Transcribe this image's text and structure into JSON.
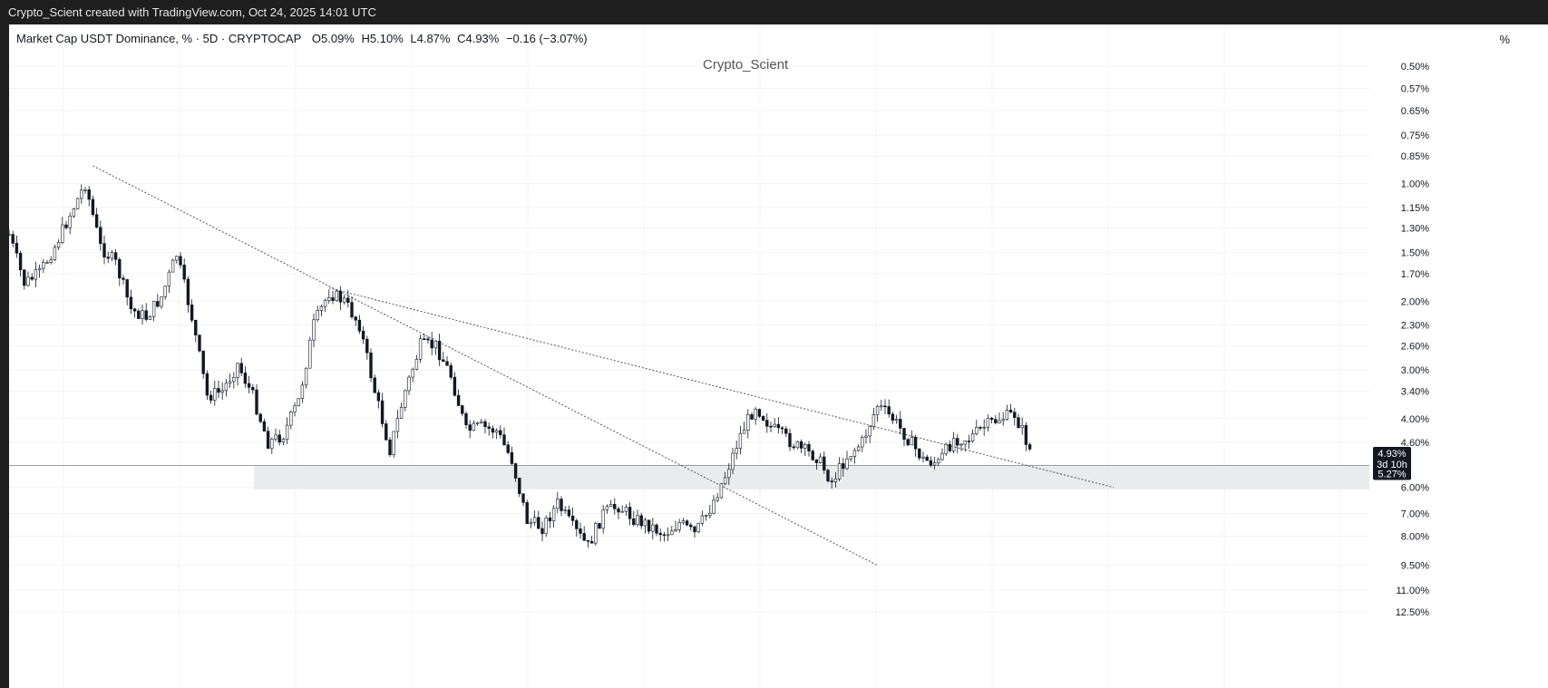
{
  "header": {
    "credit": "Crypto_Scient created with TradingView.com, Oct 24, 2025 14:01 UTC"
  },
  "legend": {
    "symbol": "Market Cap USDT Dominance, % · 5D · CRYPTOCAP",
    "open": "O5.09%",
    "high": "H5.10%",
    "low": "L4.87%",
    "close": "C4.93%",
    "change": "−0.16 (−3.07%)"
  },
  "watermark": "Crypto_Scient",
  "axis_unit": "%",
  "price_tags": {
    "last": "4.93%",
    "countdown": "3d 10h",
    "level": "5.27%"
  },
  "colors": {
    "background": "#ffffff",
    "frame": "#1e1e1e",
    "candle": "#131722",
    "zone": "#e9ebec",
    "tag": "#131722"
  },
  "chart_data": {
    "type": "candlestick",
    "scale": "log",
    "inverted": true,
    "grid": true,
    "y_ticks": [
      "0.50%",
      "0.57%",
      "0.65%",
      "0.75%",
      "0.85%",
      "1.00%",
      "1.15%",
      "1.30%",
      "1.50%",
      "1.70%",
      "2.00%",
      "2.30%",
      "2.60%",
      "3.00%",
      "3.40%",
      "4.00%",
      "4.60%",
      "6.00%",
      "7.00%",
      "8.00%",
      "9.50%",
      "11.00%",
      "12.50%"
    ],
    "y_tick_values": [
      0.5,
      0.57,
      0.65,
      0.75,
      0.85,
      1.0,
      1.15,
      1.3,
      1.5,
      1.7,
      2.0,
      2.3,
      2.6,
      3.0,
      3.4,
      4.0,
      4.6,
      6.0,
      7.0,
      8.0,
      9.5,
      11.0,
      12.5
    ],
    "last_value": 4.93,
    "horizontal_level": 5.27,
    "support_zone": [
      5.27,
      6.07
    ],
    "trend_points": [
      [
        0,
        1.35
      ],
      [
        4,
        1.8
      ],
      [
        8,
        1.7
      ],
      [
        12,
        1.45
      ],
      [
        16,
        1.2
      ],
      [
        20,
        1.0
      ],
      [
        24,
        1.45
      ],
      [
        28,
        1.6
      ],
      [
        32,
        2.1
      ],
      [
        36,
        2.2
      ],
      [
        40,
        1.95
      ],
      [
        44,
        1.52
      ],
      [
        48,
        2.2
      ],
      [
        52,
        3.5
      ],
      [
        56,
        3.4
      ],
      [
        60,
        2.9
      ],
      [
        64,
        3.5
      ],
      [
        68,
        4.6
      ],
      [
        72,
        4.4
      ],
      [
        76,
        3.6
      ],
      [
        80,
        2.3
      ],
      [
        84,
        1.9
      ],
      [
        88,
        2.0
      ],
      [
        92,
        2.3
      ],
      [
        96,
        3.4
      ],
      [
        100,
        4.8
      ],
      [
        104,
        3.4
      ],
      [
        108,
        2.6
      ],
      [
        112,
        2.6
      ],
      [
        116,
        3.1
      ],
      [
        120,
        4.3
      ],
      [
        124,
        4.2
      ],
      [
        128,
        4.3
      ],
      [
        132,
        5.1
      ],
      [
        136,
        7.3
      ],
      [
        140,
        7.6
      ],
      [
        144,
        6.6
      ],
      [
        148,
        7.6
      ],
      [
        152,
        8.5
      ],
      [
        156,
        7.0
      ],
      [
        160,
        6.7
      ],
      [
        164,
        7.2
      ],
      [
        168,
        7.5
      ],
      [
        172,
        7.9
      ],
      [
        176,
        7.4
      ],
      [
        180,
        7.9
      ],
      [
        184,
        6.8
      ],
      [
        188,
        5.6
      ],
      [
        192,
        4.4
      ],
      [
        196,
        3.7
      ],
      [
        200,
        4.2
      ],
      [
        204,
        4.5
      ],
      [
        208,
        4.8
      ],
      [
        212,
        5.0
      ],
      [
        216,
        5.8
      ],
      [
        220,
        5.0
      ],
      [
        224,
        4.6
      ],
      [
        228,
        3.7
      ],
      [
        232,
        4.0
      ],
      [
        236,
        4.5
      ],
      [
        240,
        5.1
      ],
      [
        244,
        5.2
      ],
      [
        248,
        4.5
      ],
      [
        252,
        4.5
      ],
      [
        256,
        4.2
      ],
      [
        260,
        4.0
      ],
      [
        264,
        3.9
      ],
      [
        266,
        4.3
      ],
      [
        268,
        4.8
      ]
    ],
    "trendlines": [
      {
        "from": [
          22,
          0.9
        ],
        "to": [
          228,
          9.5
        ]
      },
      {
        "from": [
          84,
          1.85
        ],
        "to": [
          290,
          6.0
        ]
      }
    ]
  }
}
